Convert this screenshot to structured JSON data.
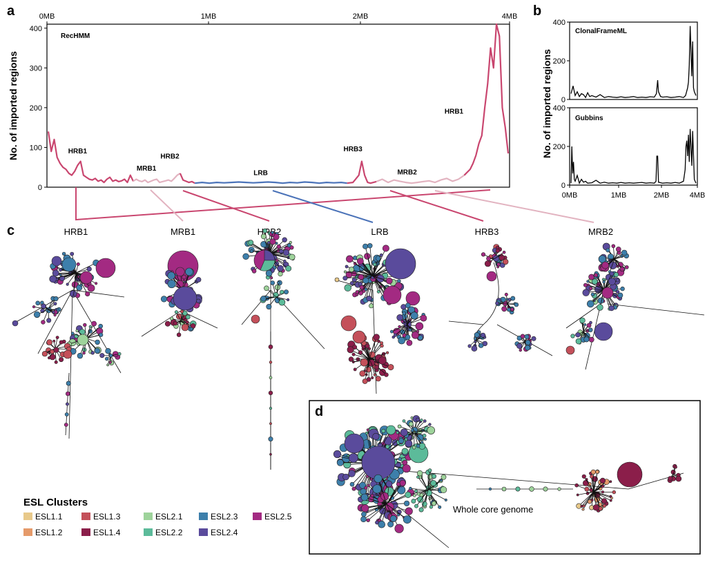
{
  "panels": {
    "a": "a",
    "b": "b",
    "c": "c",
    "d": "d"
  },
  "chart_data": [
    {
      "type": "line",
      "panel": "a",
      "method": "RecHMM",
      "ylabel": "No. of imported regions",
      "xticks": [
        "0MB",
        "1MB",
        "2MB",
        "4MB"
      ],
      "xtick_values": [
        0,
        1,
        2,
        3
      ],
      "yticks": [
        "0",
        "100",
        "200",
        "300",
        "400"
      ],
      "ylim": [
        0,
        410
      ],
      "x_unit": "MB",
      "axis_position": "top",
      "x": [
        0,
        0.02,
        0.04,
        0.06,
        0.08,
        0.1,
        0.12,
        0.14,
        0.16,
        0.18,
        0.2,
        0.22,
        0.24,
        0.26,
        0.28,
        0.3,
        0.32,
        0.34,
        0.36,
        0.38,
        0.4,
        0.42,
        0.44,
        0.46,
        0.48,
        0.5,
        0.52,
        0.54,
        0.56,
        0.58,
        0.6,
        0.62,
        0.64,
        0.66,
        0.68,
        0.7,
        0.72,
        0.74,
        0.76,
        0.78,
        0.8,
        0.82,
        0.84,
        0.86,
        0.88,
        0.9,
        0.92,
        0.94,
        0.96,
        0.98,
        1.0,
        1.05,
        1.1,
        1.15,
        1.2,
        1.25,
        1.3,
        1.35,
        1.4,
        1.45,
        1.5,
        1.55,
        1.6,
        1.65,
        1.7,
        1.75,
        1.8,
        1.85,
        1.9,
        1.95,
        2.0,
        2.04,
        2.08,
        2.12,
        2.14,
        2.16,
        2.18,
        2.2,
        2.24,
        2.28,
        2.32,
        2.36,
        2.4,
        2.44,
        2.48,
        2.52,
        2.56,
        2.6,
        2.64,
        2.68,
        2.72,
        2.76,
        2.8,
        2.84,
        2.88,
        2.9,
        2.92,
        2.94,
        2.96,
        2.98,
        3.0,
        3.02,
        3.04,
        3.06,
        3.08,
        3.1,
        3.12,
        3.14
      ],
      "y": [
        140,
        90,
        120,
        75,
        60,
        50,
        45,
        35,
        30,
        40,
        55,
        65,
        30,
        25,
        20,
        18,
        22,
        15,
        18,
        12,
        20,
        25,
        15,
        18,
        14,
        16,
        20,
        12,
        30,
        15,
        20,
        16,
        14,
        18,
        12,
        15,
        18,
        20,
        12,
        14,
        16,
        18,
        15,
        22,
        30,
        35,
        18,
        15,
        12,
        14,
        10,
        12,
        10,
        12,
        11,
        12,
        13,
        12,
        11,
        12,
        13,
        12,
        10,
        12,
        11,
        13,
        12,
        10,
        12,
        11,
        12,
        10,
        12,
        30,
        65,
        30,
        12,
        10,
        14,
        20,
        12,
        18,
        15,
        12,
        10,
        12,
        14,
        16,
        12,
        18,
        22,
        15,
        20,
        30,
        45,
        60,
        80,
        110,
        130,
        200,
        260,
        350,
        300,
        410,
        380,
        200,
        150,
        85
      ],
      "segments": [
        {
          "name": "HRB1",
          "from": 0.0,
          "to": 0.58,
          "color": "#c9466f"
        },
        {
          "name": "MRB1",
          "from": 0.58,
          "to": 0.9,
          "color": "#e2b3c0"
        },
        {
          "name": "HRB2",
          "from": 0.9,
          "to": 1.0,
          "color": "#c9466f"
        },
        {
          "name": "LRB",
          "from": 1.0,
          "to": 2.04,
          "color": "#4a72b8"
        },
        {
          "name": "HRB3",
          "from": 2.04,
          "to": 2.24,
          "color": "#c9466f"
        },
        {
          "name": "MRB2",
          "from": 2.24,
          "to": 2.84,
          "color": "#e2b3c0"
        },
        {
          "name": "HRB1",
          "from": 2.84,
          "to": 3.14,
          "color": "#c9466f"
        }
      ],
      "annotations": [
        {
          "text": "HRB1",
          "x": 0.2,
          "y": 85
        },
        {
          "text": "MRB1",
          "x": 0.67,
          "y": 42
        },
        {
          "text": "HRB2",
          "x": 0.83,
          "y": 72
        },
        {
          "text": "LRB",
          "x": 1.45,
          "y": 30
        },
        {
          "text": "HRB3",
          "x": 2.08,
          "y": 90
        },
        {
          "text": "MRB2",
          "x": 2.45,
          "y": 32
        },
        {
          "text": "HRB1",
          "x": 2.77,
          "y": 185
        }
      ]
    },
    {
      "type": "line",
      "panel": "b",
      "method": "ClonalFrameML",
      "ylabel": "No. of imported regions",
      "yticks": [
        "0",
        "200",
        "400"
      ],
      "ylim": [
        0,
        400
      ],
      "x": [
        0,
        0.05,
        0.1,
        0.15,
        0.2,
        0.25,
        0.3,
        0.35,
        0.4,
        0.45,
        0.5,
        0.6,
        0.7,
        0.8,
        0.9,
        1.0,
        1.1,
        1.2,
        1.3,
        1.4,
        1.5,
        1.6,
        1.7,
        1.8,
        1.9,
        2.0,
        2.05,
        2.08,
        2.1,
        2.15,
        2.2,
        2.3,
        2.4,
        2.5,
        2.6,
        2.7,
        2.75,
        2.8,
        2.82,
        2.84,
        2.86,
        2.88,
        2.9,
        2.92,
        2.94,
        2.96,
        3.0
      ],
      "y": [
        30,
        70,
        20,
        40,
        15,
        30,
        25,
        10,
        35,
        15,
        20,
        12,
        25,
        10,
        15,
        12,
        10,
        14,
        10,
        12,
        15,
        10,
        12,
        10,
        14,
        12,
        30,
        100,
        40,
        15,
        12,
        14,
        10,
        12,
        15,
        10,
        20,
        60,
        90,
        180,
        380,
        250,
        120,
        300,
        60,
        40,
        20
      ]
    },
    {
      "type": "line",
      "panel": "b",
      "method": "Gubbins",
      "ylabel": "No. of imported regions",
      "xticks": [
        "0MB",
        "1MB",
        "2MB",
        "4MB"
      ],
      "xtick_values": [
        0,
        1,
        2,
        3
      ],
      "yticks": [
        "0",
        "200",
        "400"
      ],
      "ylim": [
        0,
        400
      ],
      "x": [
        0,
        0.02,
        0.04,
        0.06,
        0.08,
        0.1,
        0.15,
        0.2,
        0.25,
        0.3,
        0.35,
        0.4,
        0.5,
        0.6,
        0.7,
        0.8,
        0.9,
        1.0,
        1.1,
        1.2,
        1.3,
        1.4,
        1.5,
        1.6,
        1.7,
        1.8,
        1.9,
        2.0,
        2.04,
        2.06,
        2.08,
        2.1,
        2.2,
        2.3,
        2.4,
        2.5,
        2.6,
        2.7,
        2.74,
        2.76,
        2.78,
        2.8,
        2.82,
        2.84,
        2.86,
        2.88,
        2.9,
        2.92,
        2.96,
        3.0
      ],
      "y": [
        10,
        200,
        60,
        120,
        30,
        20,
        50,
        10,
        30,
        15,
        20,
        10,
        12,
        25,
        10,
        15,
        10,
        12,
        10,
        14,
        10,
        12,
        10,
        12,
        14,
        10,
        12,
        10,
        20,
        150,
        150,
        15,
        10,
        12,
        10,
        14,
        10,
        20,
        80,
        200,
        230,
        150,
        260,
        120,
        290,
        200,
        100,
        280,
        30,
        10
      ]
    }
  ],
  "trees": {
    "titles": [
      "HRB1",
      "MRB1",
      "HRB2",
      "LRB",
      "HRB3",
      "MRB2"
    ]
  },
  "legend": {
    "title": "ESL Clusters",
    "items": [
      {
        "label": "ESL1.1",
        "color": "#e8c98a"
      },
      {
        "label": "ESL1.2",
        "color": "#e59a6a"
      },
      {
        "label": "ESL1.3",
        "color": "#c4505a"
      },
      {
        "label": "ESL1.4",
        "color": "#8b1e4a"
      },
      {
        "label": "ESL2.1",
        "color": "#9ed39b"
      },
      {
        "label": "ESL2.2",
        "color": "#5cbb9a"
      },
      {
        "label": "ESL2.3",
        "color": "#3d7fab"
      },
      {
        "label": "ESL2.4",
        "color": "#5a4b9c"
      },
      {
        "label": "ESL2.5",
        "color": "#a32a82"
      }
    ]
  },
  "panel_d": {
    "label": "Whole core genome"
  }
}
